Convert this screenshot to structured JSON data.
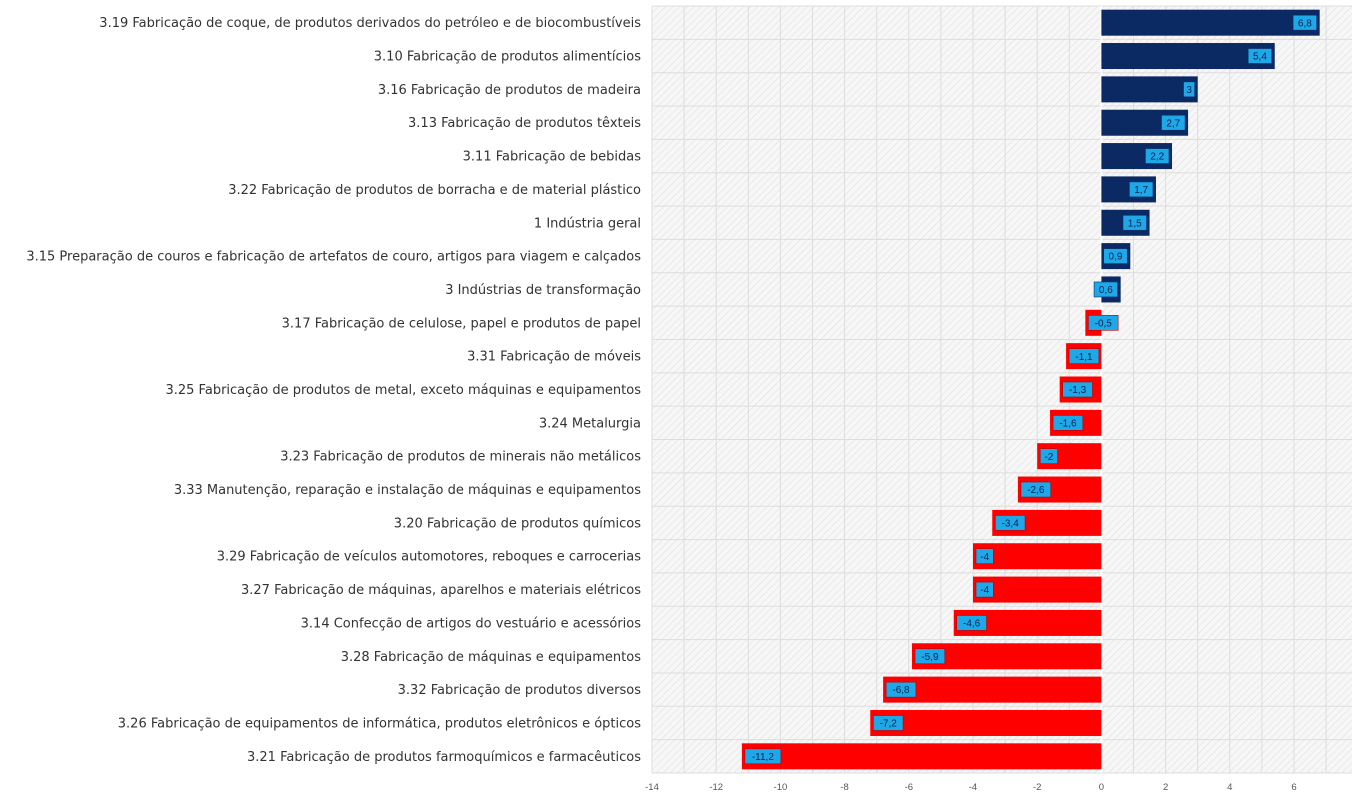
{
  "chart_data": {
    "type": "bar",
    "orientation": "horizontal",
    "categories": [
      "3.19 Fabricação de coque, de produtos derivados do petróleo e de biocombustíveis",
      "3.10 Fabricação de produtos alimentícios",
      "3.16 Fabricação de produtos de madeira",
      "3.13 Fabricação de produtos têxteis",
      "3.11 Fabricação de bebidas",
      "3.22 Fabricação de produtos de borracha e de material plástico",
      "1 Indústria geral",
      "3.15 Preparação de couros e fabricação de artefatos de couro, artigos para viagem e calçados",
      "3 Indústrias de transformação",
      "3.17 Fabricação de celulose, papel e produtos de papel",
      "3.31 Fabricação de móveis",
      "3.25 Fabricação de produtos de metal, exceto máquinas e equipamentos",
      "3.24 Metalurgia",
      "3.23 Fabricação de produtos de minerais não metálicos",
      "3.33 Manutenção, reparação e instalação de máquinas e equipamentos",
      "3.20 Fabricação de produtos químicos",
      "3.29 Fabricação de veículos automotores, reboques e carrocerias",
      "3.27 Fabricação de máquinas, aparelhos e materiais elétricos",
      "3.14 Confecção de artigos do vestuário e acessórios",
      "3.28 Fabricação de máquinas e equipamentos",
      "3.32 Fabricação de produtos diversos",
      "3.26 Fabricação de equipamentos de informática, produtos eletrônicos e ópticos",
      "3.21 Fabricação de produtos farmoquímicos e farmacêuticos"
    ],
    "values": [
      6.8,
      5.4,
      3,
      2.7,
      2.2,
      1.7,
      1.5,
      0.9,
      0.6,
      -0.5,
      -1.1,
      -1.3,
      -1.6,
      -2,
      -2.6,
      -3.4,
      -4,
      -4,
      -4.6,
      -5.9,
      -6.8,
      -7.2,
      -11.2
    ],
    "data_labels": [
      "6,8",
      "5,4",
      "3",
      "2,7",
      "2,2",
      "1,7",
      "1,5",
      "0,9",
      "0,6",
      "-0,5",
      "-1,1",
      "-1,3",
      "-1,6",
      "-2",
      "-2,6",
      "-3,4",
      "-4",
      "-4",
      "-4,6",
      "-5,9",
      "-6,8",
      "-7,2",
      "-11,2"
    ],
    "xlim": [
      -14,
      7.8
    ],
    "xticks": [
      -14,
      -12,
      -10,
      -8,
      -6,
      -4,
      -2,
      0,
      2,
      4,
      6
    ],
    "title": "",
    "xlabel": "",
    "ylabel": "",
    "grid": true,
    "legend": "none",
    "colors": {
      "positive": "#0b2a63",
      "negative": "#ff0000",
      "label_box": "#1fa8e8",
      "label_text": "#0b1f4d",
      "grid": "#dddddd",
      "background": "#f4f4f4"
    }
  }
}
